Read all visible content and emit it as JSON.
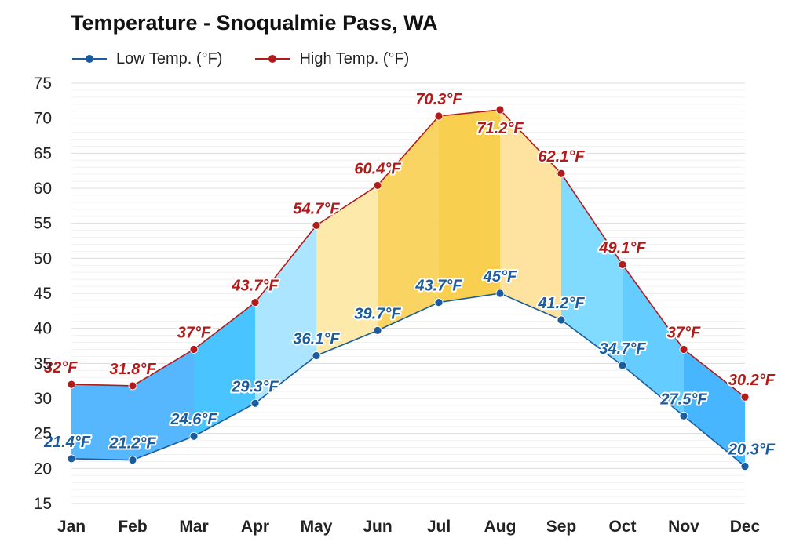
{
  "title": "Temperature - Snoqualmie Pass, WA",
  "legend": {
    "low_label": "Low Temp. (°F)",
    "high_label": "High Temp. (°F)"
  },
  "colors": {
    "low": "#1a5c9e",
    "high": "#b31b1b",
    "grid": "#e2e2e2"
  },
  "chart_data": {
    "type": "line",
    "title": "Temperature - Snoqualmie Pass, WA",
    "categories": [
      "Jan",
      "Feb",
      "Mar",
      "Apr",
      "May",
      "Jun",
      "Jul",
      "Aug",
      "Sep",
      "Oct",
      "Nov",
      "Dec"
    ],
    "series": [
      {
        "name": "Low Temp. (°F)",
        "values": [
          21.4,
          21.2,
          24.6,
          29.3,
          36.1,
          39.7,
          43.7,
          45,
          41.2,
          34.7,
          27.5,
          20.3
        ],
        "labels": [
          "21.4°F",
          "21.2°F",
          "24.6°F",
          "29.3°F",
          "36.1°F",
          "39.7°F",
          "43.7°F",
          "45°F",
          "41.2°F",
          "34.7°F",
          "27.5°F",
          "20.3°F"
        ]
      },
      {
        "name": "High Temp. (°F)",
        "values": [
          32,
          31.8,
          37,
          43.7,
          54.7,
          60.4,
          70.3,
          71.2,
          62.1,
          49.1,
          37,
          30.2
        ],
        "labels": [
          "32°F",
          "31.8°F",
          "37°F",
          "43.7°F",
          "54.7°F",
          "60.4°F",
          "70.3°F",
          "71.2°F",
          "62.1°F",
          "49.1°F",
          "37°F",
          "30.2°F"
        ]
      }
    ],
    "yticks": [
      "15",
      "20",
      "25",
      "30",
      "35",
      "40",
      "45",
      "50",
      "55",
      "60",
      "65",
      "70",
      "75"
    ],
    "ylim": [
      15,
      75
    ],
    "grid": true,
    "legend_position": "top-left",
    "band_colors": [
      "#4db3ff",
      "#4db3ff",
      "#3fc1ff",
      "#a8e4ff",
      "#fde9a6",
      "#f9d25a",
      "#f9cc47",
      "#fde29a",
      "#7ad8ff",
      "#5cc9ff",
      "#3db2ff"
    ]
  }
}
